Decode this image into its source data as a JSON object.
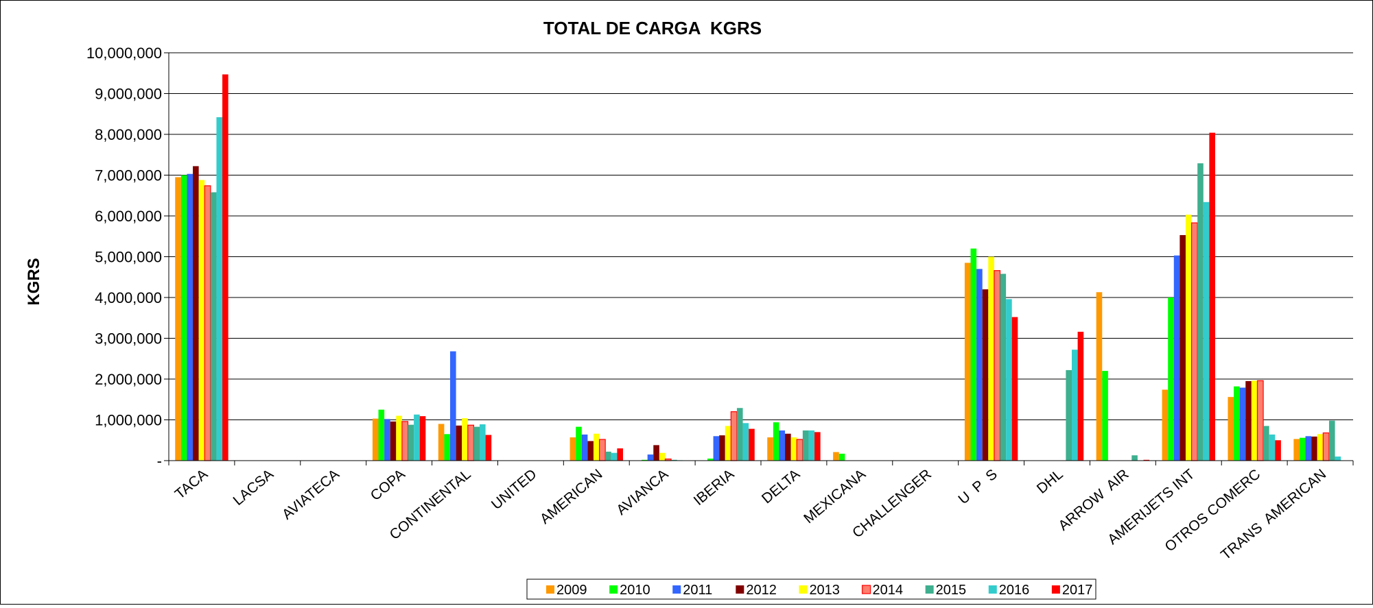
{
  "chart_data": {
    "type": "bar",
    "title": "TOTAL DE CARGA  KGRS",
    "ylabel": "KGRS",
    "xlabel": "",
    "ylim": [
      0,
      10000000
    ],
    "yticks": [
      0,
      1000000,
      2000000,
      3000000,
      4000000,
      5000000,
      6000000,
      7000000,
      8000000,
      9000000,
      10000000
    ],
    "ytick_labels": [
      "-",
      "1,000,000",
      "2,000,000",
      "3,000,000",
      "4,000,000",
      "5,000,000",
      "6,000,000",
      "7,000,000",
      "8,000,000",
      "9,000,000",
      "10,000,000"
    ],
    "grid": true,
    "legend_position": "bottom",
    "categories": [
      "TACA",
      "LACSA",
      "AVIATECA",
      "COPA",
      "CONTINENTAL",
      "UNITED",
      "AMERICAN",
      "AVIANCA",
      "IBERIA",
      "DELTA",
      "MEXICANA",
      "CHALLENGER",
      "U  P  S",
      "DHL",
      "ARROW  AIR",
      "AMERIJETS INT",
      "OTROS COMERC",
      "TRANS  AMERICAN"
    ],
    "series": [
      {
        "name": "2009",
        "color": "#ff9900",
        "values": [
          6950000,
          0,
          0,
          1030000,
          900000,
          0,
          570000,
          0,
          0,
          570000,
          210000,
          0,
          4850000,
          0,
          4130000,
          1740000,
          1560000,
          530000
        ]
      },
      {
        "name": "2010",
        "color": "#00ff00",
        "values": [
          7000000,
          0,
          0,
          1250000,
          650000,
          0,
          830000,
          20000,
          50000,
          940000,
          170000,
          0,
          5200000,
          0,
          2200000,
          4000000,
          1820000,
          560000
        ]
      },
      {
        "name": "2011",
        "color": "#3366ff",
        "values": [
          7030000,
          0,
          0,
          1020000,
          2680000,
          0,
          640000,
          150000,
          600000,
          740000,
          0,
          0,
          4700000,
          0,
          0,
          5030000,
          1790000,
          600000
        ]
      },
      {
        "name": "2012",
        "color": "#800000",
        "values": [
          7220000,
          0,
          0,
          960000,
          860000,
          0,
          480000,
          380000,
          620000,
          660000,
          0,
          0,
          4200000,
          0,
          0,
          5530000,
          1950000,
          590000
        ]
      },
      {
        "name": "2013",
        "color": "#ffff00",
        "values": [
          6880000,
          0,
          0,
          1100000,
          1040000,
          0,
          660000,
          190000,
          850000,
          570000,
          0,
          0,
          5000000,
          0,
          0,
          6030000,
          1960000,
          650000
        ]
      },
      {
        "name": "2014",
        "color": "#ff7f6e",
        "values": [
          6740000,
          0,
          0,
          960000,
          870000,
          0,
          520000,
          40000,
          1200000,
          520000,
          0,
          0,
          4660000,
          0,
          0,
          5830000,
          1960000,
          680000
        ]
      },
      {
        "name": "2015",
        "color": "#3eaf8f",
        "values": [
          6580000,
          0,
          0,
          880000,
          830000,
          0,
          220000,
          20000,
          1290000,
          740000,
          0,
          0,
          4580000,
          2220000,
          130000,
          7290000,
          850000,
          980000
        ]
      },
      {
        "name": "2016",
        "color": "#33cccc",
        "values": [
          8420000,
          0,
          0,
          1130000,
          890000,
          0,
          190000,
          10000,
          920000,
          740000,
          0,
          0,
          3960000,
          2720000,
          0,
          6340000,
          640000,
          100000
        ]
      },
      {
        "name": "2017",
        "color": "#ff0000",
        "values": [
          9470000,
          0,
          0,
          1090000,
          630000,
          0,
          300000,
          0,
          780000,
          700000,
          0,
          0,
          3520000,
          3160000,
          20000,
          8040000,
          500000,
          0
        ]
      }
    ]
  }
}
